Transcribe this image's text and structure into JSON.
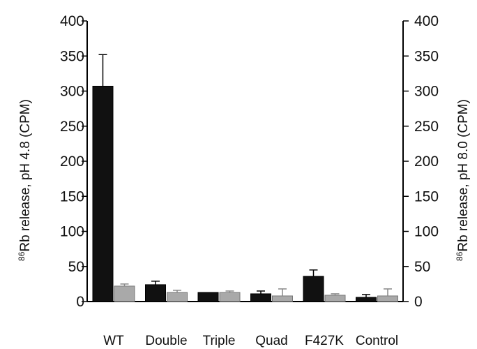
{
  "chart_data": {
    "type": "bar",
    "title": "",
    "categories": [
      "WT",
      "Double",
      "Triple",
      "Quad",
      "F427K",
      "Control"
    ],
    "series": [
      {
        "axis": "left",
        "color": "#111111",
        "values": [
          307,
          24,
          13,
          11,
          36,
          6
        ],
        "errors": [
          45,
          5,
          0,
          4,
          9,
          4
        ]
      },
      {
        "axis": "right",
        "color": "#a9a9a9",
        "values": [
          22,
          13,
          13,
          8,
          9,
          8
        ],
        "errors": [
          3,
          3,
          2,
          10,
          2,
          10
        ]
      }
    ],
    "ylabel_left": {
      "sup": "86",
      "text": "Rb release,  pH 4.8 (CPM)"
    },
    "ylabel_right": {
      "sup": "86",
      "text": "Rb release, pH 8.0  (CPM)"
    },
    "ylim": [
      0,
      400
    ],
    "yticks": [
      0,
      50,
      100,
      150,
      200,
      250,
      300,
      350,
      400
    ],
    "yticks_right": [
      0,
      50,
      100,
      150,
      200,
      250,
      300,
      350,
      400
    ],
    "grid": false,
    "legend": "none"
  }
}
